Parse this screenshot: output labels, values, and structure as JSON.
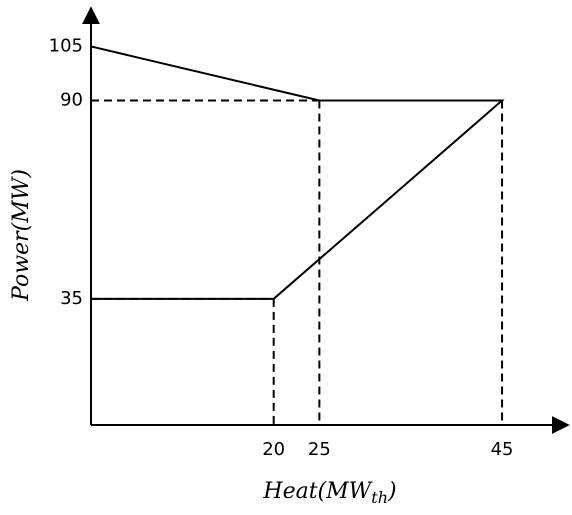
{
  "chart_data": {
    "type": "line",
    "xlabel": {
      "text": "Heat(MW",
      "sub": "th",
      "end": ")"
    },
    "ylabel": "Power(MW)",
    "series": [
      {
        "x": [
          0,
          25,
          45,
          20,
          0
        ],
        "values": [
          105,
          90,
          90,
          35,
          35
        ],
        "color": "#000000"
      }
    ],
    "xlim": [
      0,
      52
    ],
    "ylim": [
      0,
      114
    ],
    "xticks": [
      20,
      25,
      45
    ],
    "yticks": [
      35,
      90,
      105
    ],
    "guides_dashed": true
  }
}
